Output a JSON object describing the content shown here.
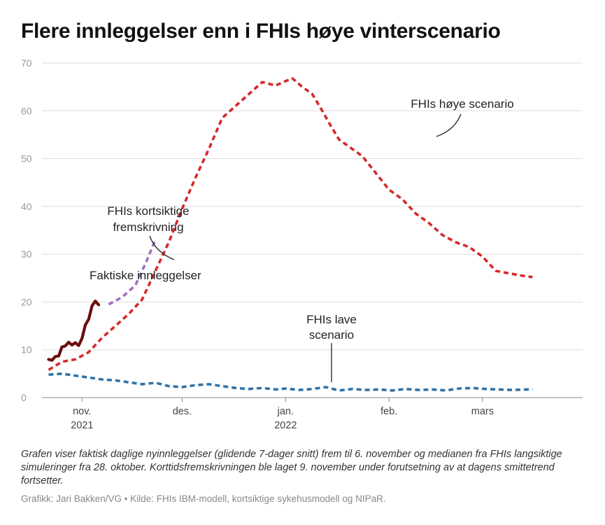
{
  "title": "Flere innleggelser enn i FHIs høye vinterscenario",
  "note": "Grafen viser faktisk daglige nyinnleggelser (glidende 7-dager snitt) frem til 6. november og medianen fra FHIs langsiktige simuleringer fra 28. oktober. Korttidsfremskrivningen ble laget 9. november under forutsetning av at dagens smittetrend fortsetter.",
  "credit": "Grafikk: Jari Bakken/VG • Kilde: FHIs IBM-modell, kortsiktige sykehusmodell og NIPaR.",
  "chart_data": {
    "type": "line",
    "title": "Flere innleggelser enn i FHIs høye vinterscenario",
    "x_unit": "date",
    "xlim": [
      "2021-10-20",
      "2022-03-31"
    ],
    "ylim": [
      0,
      70
    ],
    "yticks": [
      0,
      10,
      20,
      30,
      40,
      50,
      60,
      70
    ],
    "xticks": [
      {
        "date": "2021-11-01",
        "label": "nov.",
        "sublabel": "2021"
      },
      {
        "date": "2021-12-01",
        "label": "des.",
        "sublabel": ""
      },
      {
        "date": "2022-01-01",
        "label": "jan.",
        "sublabel": "2022"
      },
      {
        "date": "2022-02-01",
        "label": "feb.",
        "sublabel": ""
      },
      {
        "date": "2022-03-01",
        "label": "mars",
        "sublabel": ""
      }
    ],
    "grid": true,
    "colors": {
      "actual": "#6b0e0e",
      "short_term": "#a070c0",
      "high": "#d42a2a",
      "low": "#2f72a8",
      "grid": "#dddddd"
    },
    "annotations": {
      "actual": "Faktiske innleggelser",
      "short_term_line1": "FHIs kortsiktige",
      "short_term_line2": "fremskrivning",
      "high": "FHIs høye scenario",
      "low_line1": "FHIs lave",
      "low_line2": "scenario"
    },
    "series": [
      {
        "key": "actual",
        "style": "solid",
        "x": [
          "2021-10-22",
          "2021-10-23",
          "2021-10-24",
          "2021-10-25",
          "2021-10-26",
          "2021-10-27",
          "2021-10-28",
          "2021-10-29",
          "2021-10-30",
          "2021-10-31",
          "2021-11-01",
          "2021-11-02",
          "2021-11-03",
          "2021-11-04",
          "2021-11-05",
          "2021-11-06"
        ],
        "values": [
          8.0,
          7.8,
          8.6,
          8.7,
          10.6,
          10.8,
          11.6,
          11.0,
          11.5,
          10.9,
          12.4,
          15.2,
          16.4,
          19.2,
          20.2,
          19.4
        ]
      },
      {
        "key": "short_term",
        "style": "dashed",
        "x": [
          "2021-11-09",
          "2021-11-13",
          "2021-11-17",
          "2021-11-20",
          "2021-11-23"
        ],
        "values": [
          19.5,
          21.0,
          23.5,
          28.0,
          33.0
        ]
      },
      {
        "key": "high",
        "style": "dashed",
        "x": [
          "2021-10-22",
          "2021-10-26",
          "2021-10-30",
          "2021-11-03",
          "2021-11-07",
          "2021-11-11",
          "2021-11-15",
          "2021-11-19",
          "2021-11-23",
          "2021-11-27",
          "2021-12-01",
          "2021-12-05",
          "2021-12-09",
          "2021-12-13",
          "2021-12-17",
          "2021-12-21",
          "2021-12-25",
          "2021-12-29",
          "2022-01-01",
          "2022-01-03",
          "2022-01-06",
          "2022-01-09",
          "2022-01-12",
          "2022-01-14",
          "2022-01-17",
          "2022-01-20",
          "2022-01-24",
          "2022-01-28",
          "2022-02-01",
          "2022-02-05",
          "2022-02-09",
          "2022-02-13",
          "2022-02-17",
          "2022-02-21",
          "2022-02-25",
          "2022-03-01",
          "2022-03-05",
          "2022-03-09",
          "2022-03-13",
          "2022-03-16"
        ],
        "values": [
          5.8,
          7.5,
          8.0,
          9.5,
          12.5,
          15.0,
          17.5,
          20.5,
          26.5,
          32.5,
          39.5,
          46.0,
          52.0,
          58.5,
          61.0,
          63.5,
          66.0,
          65.3,
          66.2,
          66.8,
          65.0,
          63.5,
          60.0,
          57.5,
          54.0,
          52.5,
          50.5,
          47.0,
          43.5,
          41.5,
          38.5,
          36.5,
          34.0,
          32.5,
          31.5,
          29.5,
          26.5,
          26.0,
          25.5,
          25.2
        ]
      },
      {
        "key": "low",
        "style": "dashed",
        "x": [
          "2021-10-22",
          "2021-10-26",
          "2021-10-30",
          "2021-11-03",
          "2021-11-07",
          "2021-11-11",
          "2021-11-15",
          "2021-11-19",
          "2021-11-23",
          "2021-11-27",
          "2021-12-01",
          "2021-12-05",
          "2021-12-09",
          "2021-12-13",
          "2021-12-17",
          "2021-12-21",
          "2021-12-25",
          "2021-12-29",
          "2022-01-01",
          "2022-01-05",
          "2022-01-09",
          "2022-01-13",
          "2022-01-17",
          "2022-01-21",
          "2022-01-25",
          "2022-01-29",
          "2022-02-02",
          "2022-02-06",
          "2022-02-10",
          "2022-02-14",
          "2022-02-18",
          "2022-02-22",
          "2022-02-26",
          "2022-03-02",
          "2022-03-06",
          "2022-03-10",
          "2022-03-14",
          "2022-03-16"
        ],
        "values": [
          4.8,
          5.0,
          4.6,
          4.2,
          3.8,
          3.6,
          3.2,
          2.8,
          3.1,
          2.4,
          2.2,
          2.6,
          2.8,
          2.4,
          2.0,
          1.8,
          2.0,
          1.7,
          1.9,
          1.6,
          1.8,
          2.2,
          1.5,
          1.8,
          1.6,
          1.7,
          1.5,
          1.8,
          1.6,
          1.7,
          1.5,
          1.9,
          2.0,
          1.8,
          1.7,
          1.6,
          1.7,
          1.7
        ]
      }
    ]
  }
}
